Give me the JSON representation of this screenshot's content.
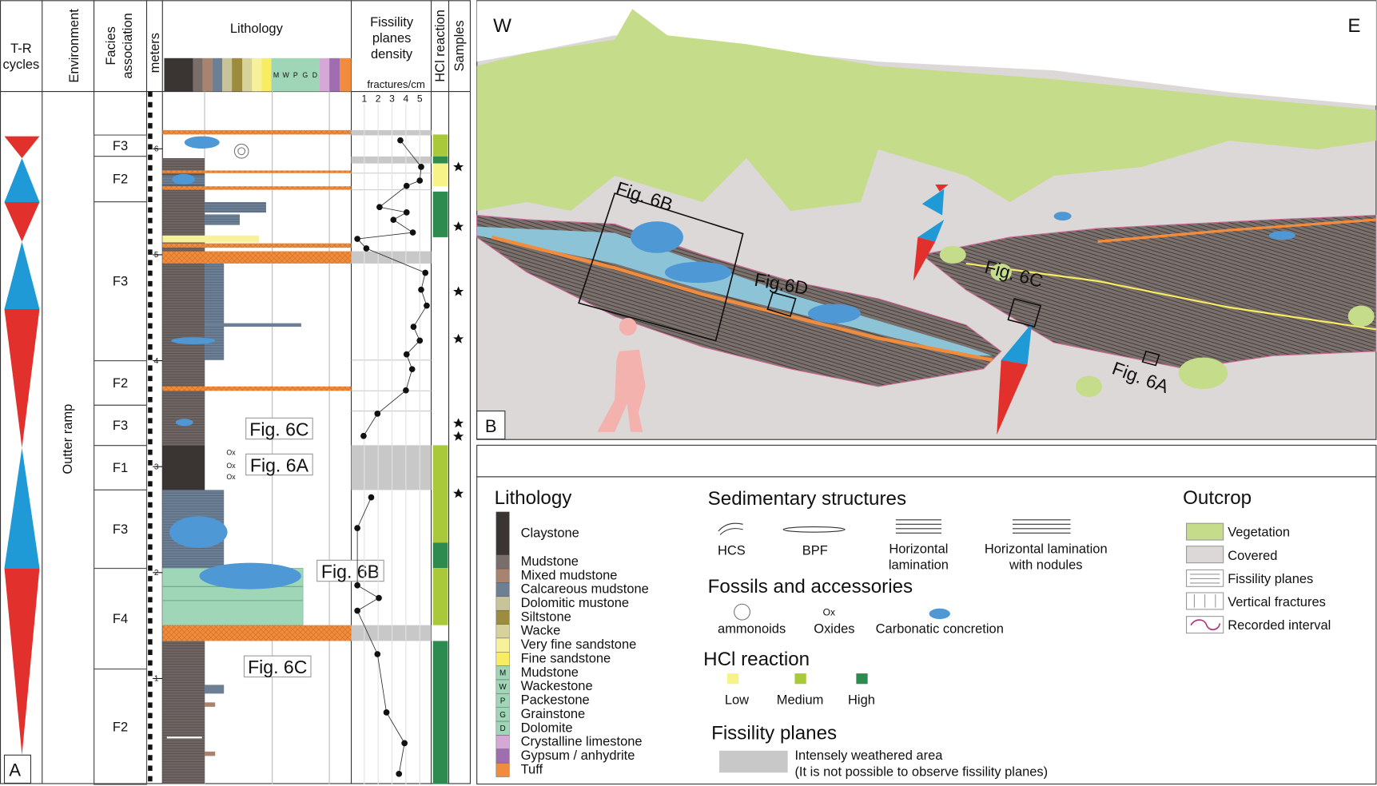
{
  "panel_a": {
    "label": "A",
    "columns": {
      "tr_cycles": [
        "T-R",
        "cycles"
      ],
      "environment": "Environment",
      "facies": [
        "Facies",
        "association"
      ],
      "meters": "meters",
      "lithology": "Lithology",
      "fissility": [
        "Fissility",
        "planes",
        "density"
      ],
      "fissility_unit": "fractures/cm",
      "hcl": "HCl reaction",
      "samples": "Samples"
    },
    "carbonate_codes": [
      "M",
      "W",
      "P",
      "G",
      "D"
    ],
    "environment": "Outter ramp",
    "meter_ticks": [
      1,
      2,
      3,
      4,
      5,
      6
    ],
    "density_ticks": [
      1,
      2,
      3,
      4,
      5
    ],
    "facies": [
      {
        "label": "F3",
        "from": 5.93,
        "to": 6.13
      },
      {
        "label": "F2",
        "from": 5.5,
        "to": 5.93
      },
      {
        "label": "F3",
        "from": 4.0,
        "to": 5.5
      },
      {
        "label": "F2",
        "from": 3.58,
        "to": 4.0
      },
      {
        "label": "F3",
        "from": 3.2,
        "to": 3.58
      },
      {
        "label": "F1",
        "from": 2.78,
        "to": 3.2
      },
      {
        "label": "F3",
        "from": 2.04,
        "to": 2.78
      },
      {
        "label": "F4",
        "from": 1.09,
        "to": 2.04
      },
      {
        "label": "F2",
        "from": 0,
        "to": 1.09
      }
    ],
    "density": [
      {
        "meters": 6.08,
        "value": 3.6
      },
      {
        "meters": 5.83,
        "value": 5.1
      },
      {
        "meters": 5.7,
        "value": 5.0
      },
      {
        "meters": 5.65,
        "value": 4.05
      },
      {
        "meters": 5.45,
        "value": 2.1
      },
      {
        "meters": 5.4,
        "value": 4.05
      },
      {
        "meters": 5.33,
        "value": 3.1
      },
      {
        "meters": 5.21,
        "value": 4.5
      },
      {
        "meters": 5.15,
        "value": 0.5
      },
      {
        "meters": 5.06,
        "value": 1.15
      },
      {
        "meters": 4.83,
        "value": 5.4
      },
      {
        "meters": 4.67,
        "value": 5.1
      },
      {
        "meters": 4.52,
        "value": 5.5
      },
      {
        "meters": 4.32,
        "value": 4.55
      },
      {
        "meters": 4.19,
        "value": 5.0
      },
      {
        "meters": 4.06,
        "value": 4.05
      },
      {
        "meters": 3.92,
        "value": 4.45
      },
      {
        "meters": 3.72,
        "value": 4.0
      },
      {
        "meters": 3.5,
        "value": 1.95
      },
      {
        "meters": 3.29,
        "value": 0.95
      },
      null,
      {
        "meters": 2.71,
        "value": 1.5
      },
      {
        "meters": 2.42,
        "value": 0.5
      },
      {
        "meters": 1.88,
        "value": 0.5
      },
      {
        "meters": 1.76,
        "value": 2.05
      },
      {
        "meters": 1.64,
        "value": 0.5
      },
      {
        "meters": 1.23,
        "value": 1.95
      },
      {
        "meters": 0.68,
        "value": 2.6
      },
      {
        "meters": 0.39,
        "value": 3.9
      },
      {
        "meters": 0.1,
        "value": 3.5
      }
    ],
    "figure_refs": [
      "Fig. 6C",
      "Fig. 6A",
      "Fig. 6B",
      "Fig. 6C"
    ],
    "oxides": [
      "Ox",
      "Ox",
      "Ox"
    ]
  },
  "panel_b": {
    "label": "B",
    "west": "W",
    "east": "E",
    "figure_refs": [
      "Fig. 6B",
      "Fig.6D",
      "Fig. 6C",
      "Fig. 6A"
    ]
  },
  "legend": {
    "lithology": {
      "title": "Lithology",
      "items": [
        {
          "name": "Claystone",
          "color": "#3a3533"
        },
        {
          "name": "Mudstone",
          "color": "#7a6e6b"
        },
        {
          "name": "Mixed mudstone",
          "color": "#a88470"
        },
        {
          "name": "Calcareous mudstone",
          "color": "#6d7f95"
        },
        {
          "name": "Dolomitic mustone",
          "color": "#c8c49a"
        },
        {
          "name": "Siltstone",
          "color": "#9e8c3e"
        },
        {
          "name": "Wacke",
          "color": "#d6d29a"
        },
        {
          "name": "Very fine sandstone",
          "color": "#f6f19a"
        },
        {
          "name": "Fine sandstone",
          "color": "#f7ec62"
        },
        {
          "name": "Mudstone",
          "color": "#9fd6b7",
          "code": "M"
        },
        {
          "name": "Wackestone",
          "color": "#9fd6b7",
          "code": "W"
        },
        {
          "name": "Packestone",
          "color": "#9fd6b7",
          "code": "P"
        },
        {
          "name": "Grainstone",
          "color": "#9fd6b7",
          "code": "G"
        },
        {
          "name": "Dolomite",
          "color": "#9fd6b7",
          "code": "D"
        },
        {
          "name": "Crystalline limestone",
          "color": "#d6a8d6"
        },
        {
          "name": "Gypsum / anhydrite",
          "color": "#9f6eb0"
        },
        {
          "name": "Tuff",
          "color": "#f08c3c"
        }
      ]
    },
    "sedimentary": {
      "title": "Sedimentary structures",
      "items": [
        "HCS",
        "BPF",
        [
          "Horizontal",
          "lamination"
        ],
        [
          "Horizontal lamination",
          "with nodules"
        ]
      ]
    },
    "fossils": {
      "title": "Fossils and accessories",
      "items": [
        "ammonoids",
        "Oxides",
        "Carbonatic concretion"
      ],
      "ox": "Ox"
    },
    "hcl": {
      "title": "HCl reaction",
      "items": [
        {
          "name": "Low",
          "color": "#f7f389"
        },
        {
          "name": "Medium",
          "color": "#a9c93a"
        },
        {
          "name": "High",
          "color": "#2e8b4f"
        }
      ]
    },
    "fissility": {
      "title": "Fissility planes",
      "text": [
        "Intensely weathered area",
        "(It is not possible to observe fissility planes)"
      ]
    },
    "outcrop": {
      "title": "Outcrop",
      "items": [
        "Vegetation",
        "Covered",
        "Fissility planes",
        "Vertical fractures",
        "Recorded interval"
      ]
    }
  }
}
